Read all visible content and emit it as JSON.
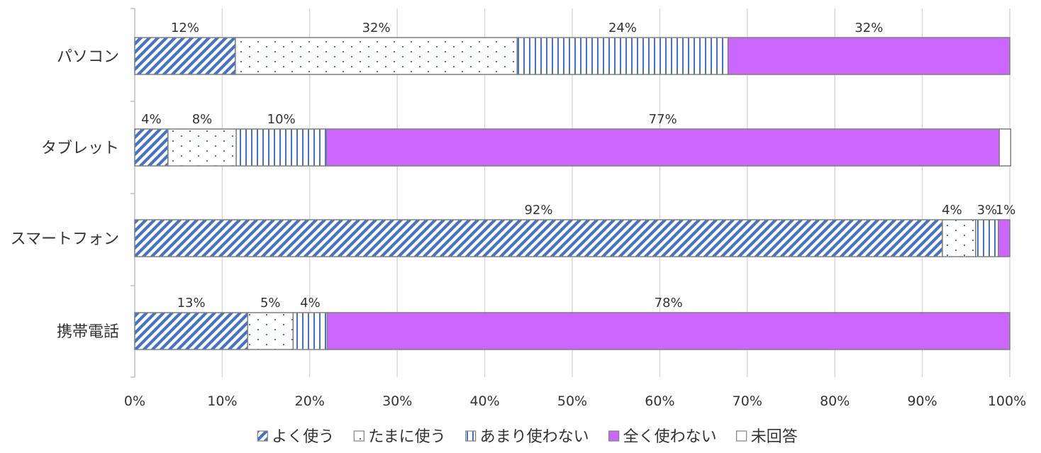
{
  "chart_data": {
    "type": "bar",
    "orientation": "horizontal",
    "stacked": "percent",
    "title": "",
    "xlabel": "",
    "ylabel": "",
    "xlim": [
      0,
      100
    ],
    "grid": "vertical",
    "legend_position": "bottom",
    "categories": [
      "パソコン",
      "タブレット",
      "スマートフォン",
      "携帯電話"
    ],
    "ticks": [
      "0%",
      "10%",
      "20%",
      "30%",
      "40%",
      "50%",
      "60%",
      "70%",
      "80%",
      "90%",
      "100%"
    ],
    "series": [
      {
        "name": "よく使う",
        "values": [
          11.5,
          3.8,
          92.3,
          12.9
        ],
        "labels": [
          "12%",
          "4%",
          "92%",
          "13%"
        ],
        "color": "#4472c4",
        "pattern": "diagonal"
      },
      {
        "name": "たまに使う",
        "values": [
          32.2,
          7.8,
          3.8,
          5.2
        ],
        "labels": [
          "32%",
          "8%",
          "4%",
          "5%"
        ],
        "color": "#4472c4",
        "pattern": "dots"
      },
      {
        "name": "あまり使わない",
        "values": [
          24.1,
          10.3,
          2.6,
          3.9
        ],
        "labels": [
          "24%",
          "10%",
          "3%",
          "4%"
        ],
        "color": "#4472c4",
        "pattern": "vertical"
      },
      {
        "name": "全く使わない",
        "values": [
          32.2,
          76.9,
          1.3,
          78.0
        ],
        "labels": [
          "32%",
          "77%",
          "1%",
          "78%"
        ],
        "color": "#cc66ff",
        "pattern": "solid"
      },
      {
        "name": "未回答",
        "values": [
          0,
          1.3,
          0,
          0
        ],
        "labels": [
          "",
          "",
          "",
          ""
        ],
        "color": "#ffffff",
        "pattern": "none"
      }
    ]
  }
}
